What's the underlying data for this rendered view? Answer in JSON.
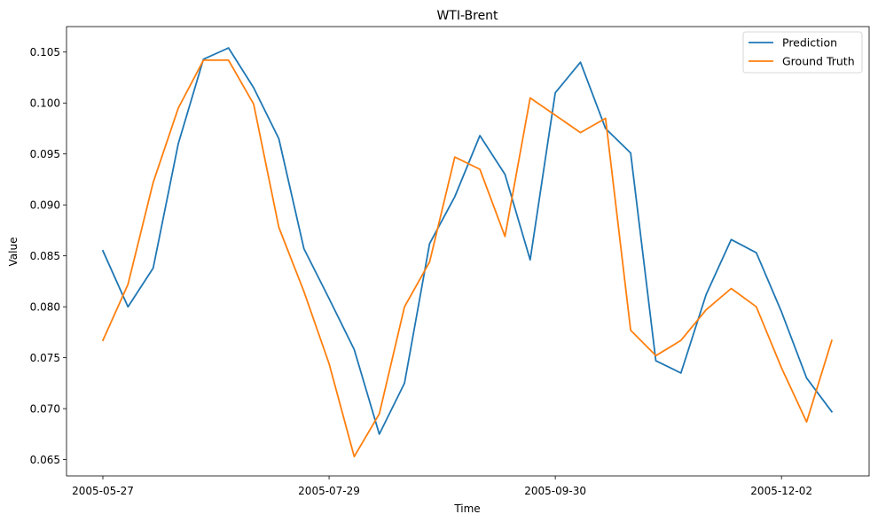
{
  "chart_data": {
    "type": "line",
    "title": "WTI-Brent",
    "xlabel": "Time",
    "ylabel": "Value",
    "x_ticks": [
      "2005-05-27",
      "2005-07-29",
      "2005-09-30",
      "2005-12-02"
    ],
    "x_tick_index": [
      0,
      9,
      18,
      27
    ],
    "x_points": 30,
    "ylim": [
      0.0634,
      0.1075
    ],
    "y_ticks": [
      "0.065",
      "0.070",
      "0.075",
      "0.080",
      "0.085",
      "0.090",
      "0.095",
      "0.100",
      "0.105"
    ],
    "y_tick_values": [
      0.065,
      0.07,
      0.075,
      0.08,
      0.085,
      0.09,
      0.095,
      0.1,
      0.105
    ],
    "grid": false,
    "legend_position": "top-right",
    "series": [
      {
        "name": "Prediction",
        "color": "#1f77b4",
        "values": [
          0.0855,
          0.08,
          0.0838,
          0.096,
          0.1043,
          0.1054,
          0.1015,
          0.0965,
          0.0857,
          0.0808,
          0.0758,
          0.0675,
          0.0725,
          0.0862,
          0.0908,
          0.0968,
          0.093,
          0.0846,
          0.101,
          0.104,
          0.0975,
          0.0951,
          0.0747,
          0.0735,
          0.0812,
          0.0866,
          0.0853,
          0.0795,
          0.073,
          0.0697
        ]
      },
      {
        "name": "Ground Truth",
        "color": "#ff7f0e",
        "values": [
          0.0767,
          0.0822,
          0.0922,
          0.0995,
          0.1042,
          0.1042,
          0.0999,
          0.0878,
          0.0815,
          0.0744,
          0.0653,
          0.0695,
          0.08,
          0.0844,
          0.0947,
          0.0935,
          0.0869,
          0.1005,
          0.0988,
          0.0971,
          0.0985,
          0.0777,
          0.0752,
          0.0767,
          0.0797,
          0.0818,
          0.08,
          0.074,
          0.0687,
          0.0767
        ]
      }
    ]
  }
}
